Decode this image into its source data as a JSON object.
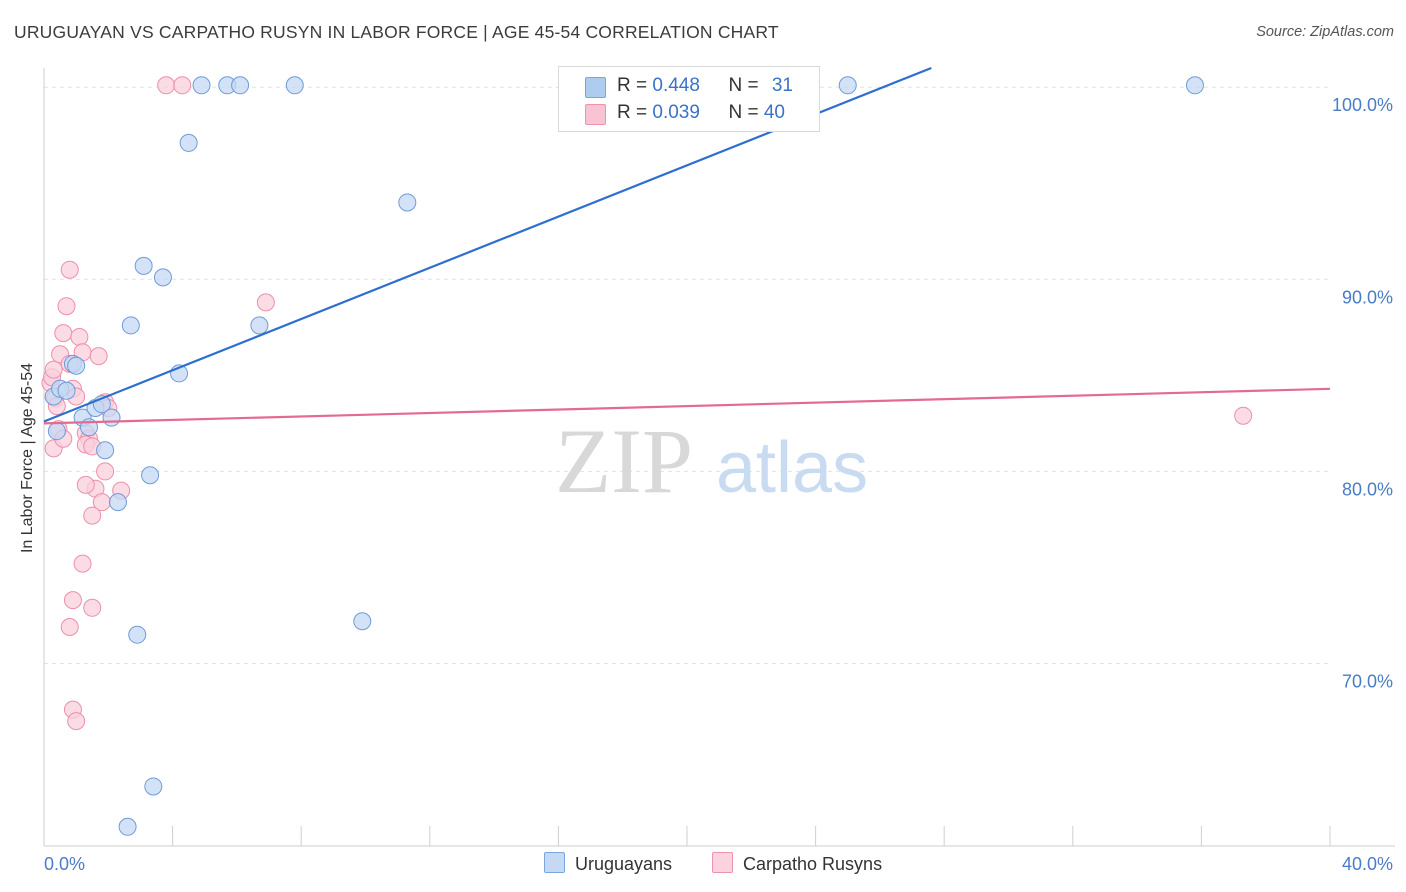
{
  "header": {
    "title": "URUGUAYAN VS CARPATHO RUSYN IN LABOR FORCE | AGE 45-54 CORRELATION CHART",
    "source": "Source: ZipAtlas.com"
  },
  "watermark": {
    "zip": "ZIP",
    "atlas": "atlas"
  },
  "legend": {
    "rows": [
      {
        "r_label": "R = ",
        "r_value": "0.448",
        "n_label": "N = ",
        "n_value": "31",
        "color": "#aecbf0",
        "border": "#7aa6e0"
      },
      {
        "r_label": "R = ",
        "r_value": "0.039",
        "n_label": "N = ",
        "n_value": "40",
        "color": "#f8c4d4",
        "border": "#ee92ae"
      }
    ],
    "bottom": [
      {
        "label": "Uruguayans",
        "color": "#c5d9f4",
        "border": "#7aa6e0"
      },
      {
        "label": "Carpatho Rusyns",
        "color": "#fbd3df",
        "border": "#ee92ae"
      }
    ]
  },
  "colors": {
    "blue_fill": "#c4d8f3",
    "blue_stroke": "#6e9bd8",
    "blue_line": "#2d6fcf",
    "pink_fill": "#f9d0dc",
    "pink_stroke": "#ec8fab",
    "pink_line": "#e46b90",
    "tick_label": "#4a7cc7",
    "grid": "#e3e3e3"
  },
  "chart_data": {
    "type": "scatter",
    "title": "URUGUAYAN VS CARPATHO RUSYN IN LABOR FORCE | AGE 45-54 CORRELATION CHART",
    "xlabel": "",
    "ylabel": "In Labor Force | Age 45-54",
    "xlim": [
      0,
      40
    ],
    "ylim": [
      60.5,
      101
    ],
    "x_tick_labels": [
      {
        "value": 0,
        "label": "0.0%"
      },
      {
        "value": 40,
        "label": "40.0%"
      }
    ],
    "y_tick_labels": [
      {
        "value": 70,
        "label": "70.0%"
      },
      {
        "value": 80,
        "label": "80.0%"
      },
      {
        "value": 90,
        "label": "90.0%"
      },
      {
        "value": 100,
        "label": "100.0%"
      }
    ],
    "series": [
      {
        "name": "Uruguayans",
        "R": 0.448,
        "N": 31,
        "trend": {
          "x0": 0,
          "y0": 82.6,
          "x1": 27.6,
          "y1": 101
        },
        "points": [
          [
            0.3,
            83.9
          ],
          [
            0.5,
            84.3
          ],
          [
            0.7,
            84.2
          ],
          [
            0.9,
            85.6
          ],
          [
            1.0,
            85.5
          ],
          [
            1.2,
            82.8
          ],
          [
            1.4,
            82.3
          ],
          [
            1.6,
            83.3
          ],
          [
            1.8,
            83.5
          ],
          [
            2.1,
            82.8
          ],
          [
            1.9,
            81.1
          ],
          [
            2.3,
            78.4
          ],
          [
            2.7,
            87.6
          ],
          [
            3.1,
            90.7
          ],
          [
            3.3,
            79.8
          ],
          [
            3.7,
            90.1
          ],
          [
            4.2,
            85.1
          ],
          [
            4.5,
            97.1
          ],
          [
            4.9,
            100.1
          ],
          [
            5.7,
            100.1
          ],
          [
            6.1,
            100.1
          ],
          [
            6.7,
            87.6
          ],
          [
            7.8,
            100.1
          ],
          [
            11.3,
            94.0
          ],
          [
            25.0,
            100.1
          ],
          [
            35.8,
            100.1
          ],
          [
            2.9,
            71.5
          ],
          [
            3.4,
            63.6
          ],
          [
            2.6,
            61.5
          ],
          [
            9.9,
            72.2
          ],
          [
            0.4,
            82.1
          ]
        ]
      },
      {
        "name": "Carpatho Rusyns",
        "R": 0.039,
        "N": 40,
        "trend": {
          "x0": 0,
          "y0": 82.5,
          "x1": 40,
          "y1": 84.3
        },
        "points": [
          [
            0.2,
            84.6
          ],
          [
            0.25,
            84.9
          ],
          [
            0.3,
            85.3
          ],
          [
            0.35,
            83.8
          ],
          [
            0.4,
            83.4
          ],
          [
            0.45,
            82.2
          ],
          [
            0.3,
            81.2
          ],
          [
            0.5,
            86.1
          ],
          [
            0.6,
            87.2
          ],
          [
            0.7,
            88.6
          ],
          [
            0.8,
            85.6
          ],
          [
            0.9,
            84.3
          ],
          [
            1.0,
            83.9
          ],
          [
            1.1,
            87.0
          ],
          [
            1.2,
            86.2
          ],
          [
            1.3,
            82.0
          ],
          [
            1.4,
            81.7
          ],
          [
            1.3,
            81.4
          ],
          [
            1.5,
            81.3
          ],
          [
            1.7,
            86.0
          ],
          [
            1.9,
            83.6
          ],
          [
            2.0,
            83.3
          ],
          [
            0.8,
            90.5
          ],
          [
            2.4,
            79.0
          ],
          [
            1.6,
            79.1
          ],
          [
            1.3,
            79.3
          ],
          [
            1.8,
            78.4
          ],
          [
            1.5,
            77.7
          ],
          [
            1.2,
            75.2
          ],
          [
            0.9,
            73.3
          ],
          [
            1.5,
            72.9
          ],
          [
            0.8,
            71.9
          ],
          [
            0.9,
            67.6
          ],
          [
            1.0,
            67.0
          ],
          [
            3.8,
            100.1
          ],
          [
            4.3,
            100.1
          ],
          [
            6.9,
            88.8
          ],
          [
            37.3,
            82.9
          ],
          [
            0.6,
            81.7
          ],
          [
            1.9,
            80.0
          ]
        ]
      }
    ]
  }
}
